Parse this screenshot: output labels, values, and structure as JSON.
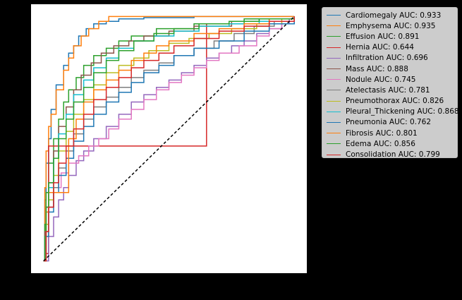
{
  "chart_data": {
    "type": "line",
    "title": "",
    "xlabel": "",
    "ylabel": "",
    "xlim": [
      -0.05,
      1.05
    ],
    "ylim": [
      -0.05,
      1.05
    ],
    "grid": false,
    "legend_position": "outside-right",
    "diagonal": {
      "x": [
        0,
        1
      ],
      "y": [
        0,
        1
      ],
      "color": "#000000",
      "style": "dashed"
    },
    "series": [
      {
        "name": "Cardiomegaly AUC: 0.933",
        "color": "#1f77b4",
        "x": [
          0,
          0.005,
          0.01,
          0.02,
          0.03,
          0.05,
          0.08,
          0.1,
          0.12,
          0.14,
          0.17,
          0.2,
          0.25,
          0.3,
          0.4,
          0.6,
          0.8,
          1
        ],
        "y": [
          0,
          0.25,
          0.4,
          0.5,
          0.62,
          0.72,
          0.8,
          0.85,
          0.88,
          0.92,
          0.95,
          0.97,
          0.98,
          0.99,
          0.995,
          1,
          1,
          1
        ]
      },
      {
        "name": "Emphysema AUC: 0.935",
        "color": "#ff7f0e",
        "x": [
          0,
          0.005,
          0.01,
          0.02,
          0.03,
          0.05,
          0.08,
          0.1,
          0.12,
          0.15,
          0.18,
          0.22,
          0.26,
          0.3,
          0.45,
          0.7,
          1
        ],
        "y": [
          0,
          0.3,
          0.45,
          0.55,
          0.6,
          0.7,
          0.78,
          0.83,
          0.88,
          0.92,
          0.95,
          0.98,
          1,
          1,
          1,
          1,
          1
        ]
      },
      {
        "name": "Effusion AUC: 0.891",
        "color": "#2ca02c",
        "x": [
          0,
          0.005,
          0.01,
          0.02,
          0.04,
          0.06,
          0.08,
          0.1,
          0.13,
          0.16,
          0.2,
          0.25,
          0.3,
          0.35,
          0.45,
          0.6,
          0.8,
          1
        ],
        "y": [
          0,
          0.15,
          0.28,
          0.4,
          0.5,
          0.58,
          0.65,
          0.7,
          0.75,
          0.8,
          0.84,
          0.87,
          0.9,
          0.92,
          0.95,
          0.97,
          0.99,
          1
        ]
      },
      {
        "name": "Hernia AUC: 0.644",
        "color": "#d62728",
        "x": [
          0,
          0.01,
          0.01,
          0.02,
          0.02,
          0.25,
          0.25,
          0.3,
          0.3,
          0.65,
          0.65,
          1
        ],
        "y": [
          0,
          0,
          0.03,
          0.03,
          0.47,
          0.47,
          0.47,
          0.47,
          0.47,
          0.47,
          0.97,
          1
        ]
      },
      {
        "name": "Infiltration AUC: 0.696",
        "color": "#9467bd",
        "x": [
          0,
          0.02,
          0.04,
          0.06,
          0.08,
          0.1,
          0.13,
          0.16,
          0.2,
          0.25,
          0.3,
          0.35,
          0.4,
          0.45,
          0.5,
          0.55,
          0.6,
          0.65,
          0.7,
          0.75,
          0.8,
          0.85,
          0.9,
          0.95,
          0.98,
          1
        ],
        "y": [
          0,
          0.1,
          0.18,
          0.25,
          0.3,
          0.35,
          0.41,
          0.45,
          0.5,
          0.55,
          0.6,
          0.65,
          0.68,
          0.71,
          0.74,
          0.77,
          0.8,
          0.83,
          0.85,
          0.88,
          0.9,
          0.93,
          0.95,
          0.97,
          0.99,
          1
        ]
      },
      {
        "name": "Mass AUC: 0.888",
        "color": "#8c564b",
        "x": [
          0,
          0.005,
          0.01,
          0.02,
          0.04,
          0.06,
          0.09,
          0.12,
          0.15,
          0.19,
          0.23,
          0.28,
          0.34,
          0.4,
          0.5,
          0.6,
          0.75,
          0.9,
          1
        ],
        "y": [
          0,
          0.12,
          0.22,
          0.32,
          0.45,
          0.55,
          0.63,
          0.7,
          0.76,
          0.81,
          0.85,
          0.88,
          0.9,
          0.92,
          0.94,
          0.96,
          0.98,
          0.99,
          1
        ]
      },
      {
        "name": "Nodule AUC: 0.745",
        "color": "#e377c2",
        "x": [
          0,
          0.01,
          0.02,
          0.04,
          0.07,
          0.1,
          0.14,
          0.18,
          0.22,
          0.26,
          0.3,
          0.35,
          0.4,
          0.45,
          0.5,
          0.55,
          0.6,
          0.65,
          0.7,
          0.78,
          0.85,
          0.9,
          0.95,
          1
        ],
        "y": [
          0,
          0.15,
          0.22,
          0.3,
          0.36,
          0.4,
          0.43,
          0.47,
          0.5,
          0.54,
          0.58,
          0.62,
          0.66,
          0.7,
          0.73,
          0.76,
          0.79,
          0.82,
          0.85,
          0.88,
          0.92,
          0.95,
          0.98,
          1
        ]
      },
      {
        "name": "Atelectasis AUC: 0.781",
        "color": "#7f7f7f",
        "x": [
          0,
          0.01,
          0.02,
          0.04,
          0.06,
          0.09,
          0.12,
          0.16,
          0.2,
          0.25,
          0.3,
          0.35,
          0.4,
          0.46,
          0.52,
          0.6,
          0.68,
          0.76,
          0.84,
          0.92,
          1
        ],
        "y": [
          0,
          0.12,
          0.22,
          0.3,
          0.38,
          0.45,
          0.52,
          0.58,
          0.63,
          0.67,
          0.71,
          0.75,
          0.78,
          0.81,
          0.84,
          0.87,
          0.9,
          0.93,
          0.96,
          0.98,
          1
        ]
      },
      {
        "name": "Pneumothorax AUC: 0.826",
        "color": "#bcbd22",
        "x": [
          0,
          0.01,
          0.02,
          0.04,
          0.06,
          0.09,
          0.12,
          0.16,
          0.2,
          0.25,
          0.3,
          0.36,
          0.42,
          0.5,
          0.58,
          0.66,
          0.75,
          0.85,
          0.95,
          1
        ],
        "y": [
          0,
          0.15,
          0.25,
          0.35,
          0.45,
          0.53,
          0.6,
          0.66,
          0.72,
          0.77,
          0.8,
          0.83,
          0.86,
          0.89,
          0.91,
          0.93,
          0.95,
          0.97,
          0.99,
          1
        ]
      },
      {
        "name": "Pleural_Thickening AUC: 0.868",
        "color": "#17becf",
        "x": [
          0,
          0.005,
          0.01,
          0.02,
          0.04,
          0.06,
          0.09,
          0.12,
          0.16,
          0.2,
          0.25,
          0.3,
          0.36,
          0.44,
          0.52,
          0.62,
          0.74,
          0.86,
          1
        ],
        "y": [
          0,
          0.1,
          0.2,
          0.3,
          0.42,
          0.52,
          0.6,
          0.68,
          0.74,
          0.79,
          0.83,
          0.87,
          0.9,
          0.92,
          0.94,
          0.96,
          0.97,
          0.98,
          1
        ]
      },
      {
        "name": "Pneumonia AUC: 0.762",
        "color": "#1f77b4",
        "x": [
          0,
          0.01,
          0.02,
          0.04,
          0.06,
          0.09,
          0.12,
          0.16,
          0.2,
          0.25,
          0.3,
          0.35,
          0.4,
          0.46,
          0.52,
          0.6,
          0.7,
          0.8,
          0.9,
          1
        ],
        "y": [
          0,
          0.1,
          0.2,
          0.28,
          0.35,
          0.42,
          0.49,
          0.55,
          0.6,
          0.65,
          0.69,
          0.73,
          0.77,
          0.8,
          0.84,
          0.87,
          0.9,
          0.94,
          0.97,
          1
        ]
      },
      {
        "name": "Fibrosis AUC: 0.801",
        "color": "#ff7f0e",
        "x": [
          0,
          0.01,
          0.02,
          0.05,
          0.08,
          0.1,
          0.1,
          0.13,
          0.16,
          0.2,
          0.25,
          0.3,
          0.35,
          0.4,
          0.45,
          0.5,
          0.6,
          0.7,
          0.8,
          0.9,
          1
        ],
        "y": [
          0,
          0.2,
          0.28,
          0.28,
          0.28,
          0.28,
          0.5,
          0.58,
          0.65,
          0.7,
          0.74,
          0.78,
          0.82,
          0.85,
          0.88,
          0.9,
          0.93,
          0.95,
          0.97,
          0.99,
          1
        ]
      },
      {
        "name": "Edema AUC: 0.856",
        "color": "#2ca02c",
        "x": [
          0,
          0.005,
          0.01,
          0.02,
          0.04,
          0.06,
          0.09,
          0.12,
          0.16,
          0.2,
          0.25,
          0.3,
          0.36,
          0.44,
          0.52,
          0.62,
          0.74,
          0.86,
          1
        ],
        "y": [
          0,
          0.1,
          0.22,
          0.32,
          0.42,
          0.5,
          0.58,
          0.65,
          0.71,
          0.77,
          0.82,
          0.86,
          0.9,
          0.93,
          0.95,
          0.97,
          0.98,
          0.99,
          1
        ]
      },
      {
        "name": "Consolidation AUC: 0.799",
        "color": "#d62728",
        "x": [
          0,
          0.01,
          0.02,
          0.04,
          0.06,
          0.09,
          0.12,
          0.16,
          0.2,
          0.25,
          0.3,
          0.35,
          0.4,
          0.46,
          0.52,
          0.6,
          0.7,
          0.8,
          0.9,
          1
        ],
        "y": [
          0,
          0.12,
          0.22,
          0.32,
          0.4,
          0.47,
          0.54,
          0.6,
          0.66,
          0.71,
          0.75,
          0.79,
          0.82,
          0.85,
          0.88,
          0.91,
          0.94,
          0.96,
          0.98,
          1
        ]
      }
    ]
  }
}
